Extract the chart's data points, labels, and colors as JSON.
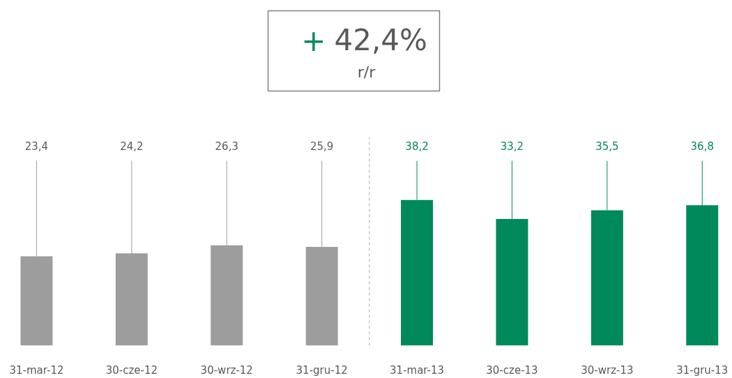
{
  "chart_data": {
    "type": "bar",
    "categories": [
      "31-mar-12",
      "30-cze-12",
      "30-wrz-12",
      "31-gru-12",
      "31-mar-13",
      "30-cze-13",
      "30-wrz-13",
      "31-gru-13"
    ],
    "values": [
      23.4,
      24.2,
      26.3,
      25.9,
      38.2,
      33.2,
      35.5,
      36.8
    ],
    "value_labels": [
      "23,4",
      "24,2",
      "26,3",
      "25,9",
      "38,2",
      "33,2",
      "35,5",
      "36,8"
    ],
    "colors": [
      "#9d9d9e",
      "#9d9d9e",
      "#9d9d9e",
      "#9d9d9e",
      "#00895a",
      "#00895a",
      "#00895a",
      "#00895a"
    ],
    "annotations": [
      "+ 42,4%",
      "r/r"
    ]
  }
}
